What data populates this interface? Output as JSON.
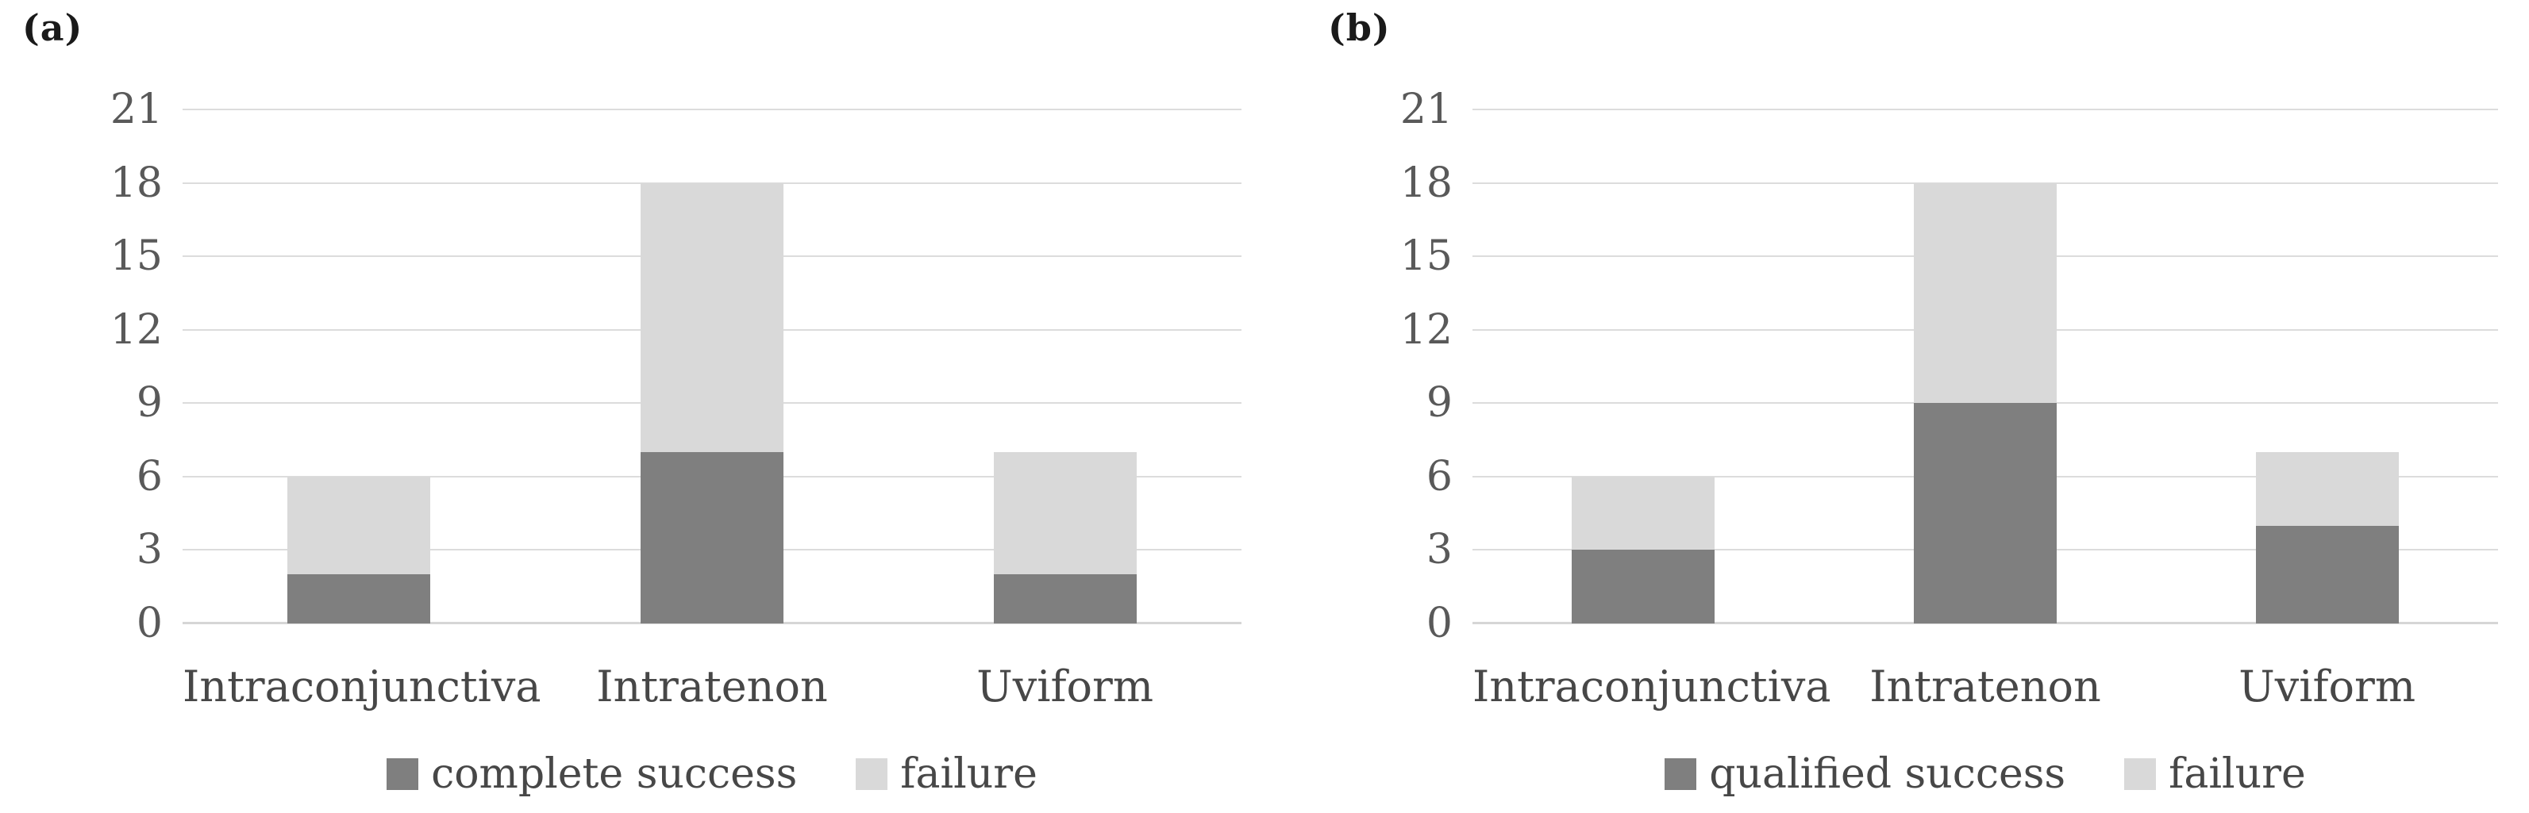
{
  "figure_type": "two-panel stacked bar chart",
  "colors": {
    "background": "#ffffff",
    "gridline": "#dcdcdc",
    "axis_line": "#d6d6d6",
    "tick_text": "#595959",
    "label_text": "#474747",
    "panel_label_text": "#1a1a1a",
    "series_dark": "#7f7f7f",
    "series_light": "#d9d9d9"
  },
  "chart_data": [
    {
      "type": "bar",
      "stacked": true,
      "panel_label": "(a)",
      "title": "",
      "xlabel": "",
      "ylabel": "",
      "categories": [
        "Intraconjunctiva",
        "Intratenon",
        "Uviform"
      ],
      "series": [
        {
          "name": "complete success",
          "color": "#7f7f7f",
          "values": [
            2,
            7,
            2
          ]
        },
        {
          "name": "failure",
          "color": "#d9d9d9",
          "values": [
            4,
            11,
            5
          ]
        }
      ],
      "stack_totals": [
        6,
        18,
        7
      ],
      "ylim": [
        0,
        21
      ],
      "yticks": [
        0,
        3,
        6,
        9,
        12,
        15,
        18,
        21
      ],
      "grid": true,
      "legend_position": "bottom"
    },
    {
      "type": "bar",
      "stacked": true,
      "panel_label": "(b)",
      "title": "",
      "xlabel": "",
      "ylabel": "",
      "categories": [
        "Intraconjunctiva",
        "Intratenon",
        "Uviform"
      ],
      "series": [
        {
          "name": "qualified success",
          "color": "#7f7f7f",
          "values": [
            3,
            9,
            4
          ]
        },
        {
          "name": "failure",
          "color": "#d9d9d9",
          "values": [
            3,
            9,
            3
          ]
        }
      ],
      "stack_totals": [
        6,
        18,
        7
      ],
      "ylim": [
        0,
        21
      ],
      "yticks": [
        0,
        3,
        6,
        9,
        12,
        15,
        18,
        21
      ],
      "grid": true,
      "legend_position": "bottom"
    }
  ]
}
